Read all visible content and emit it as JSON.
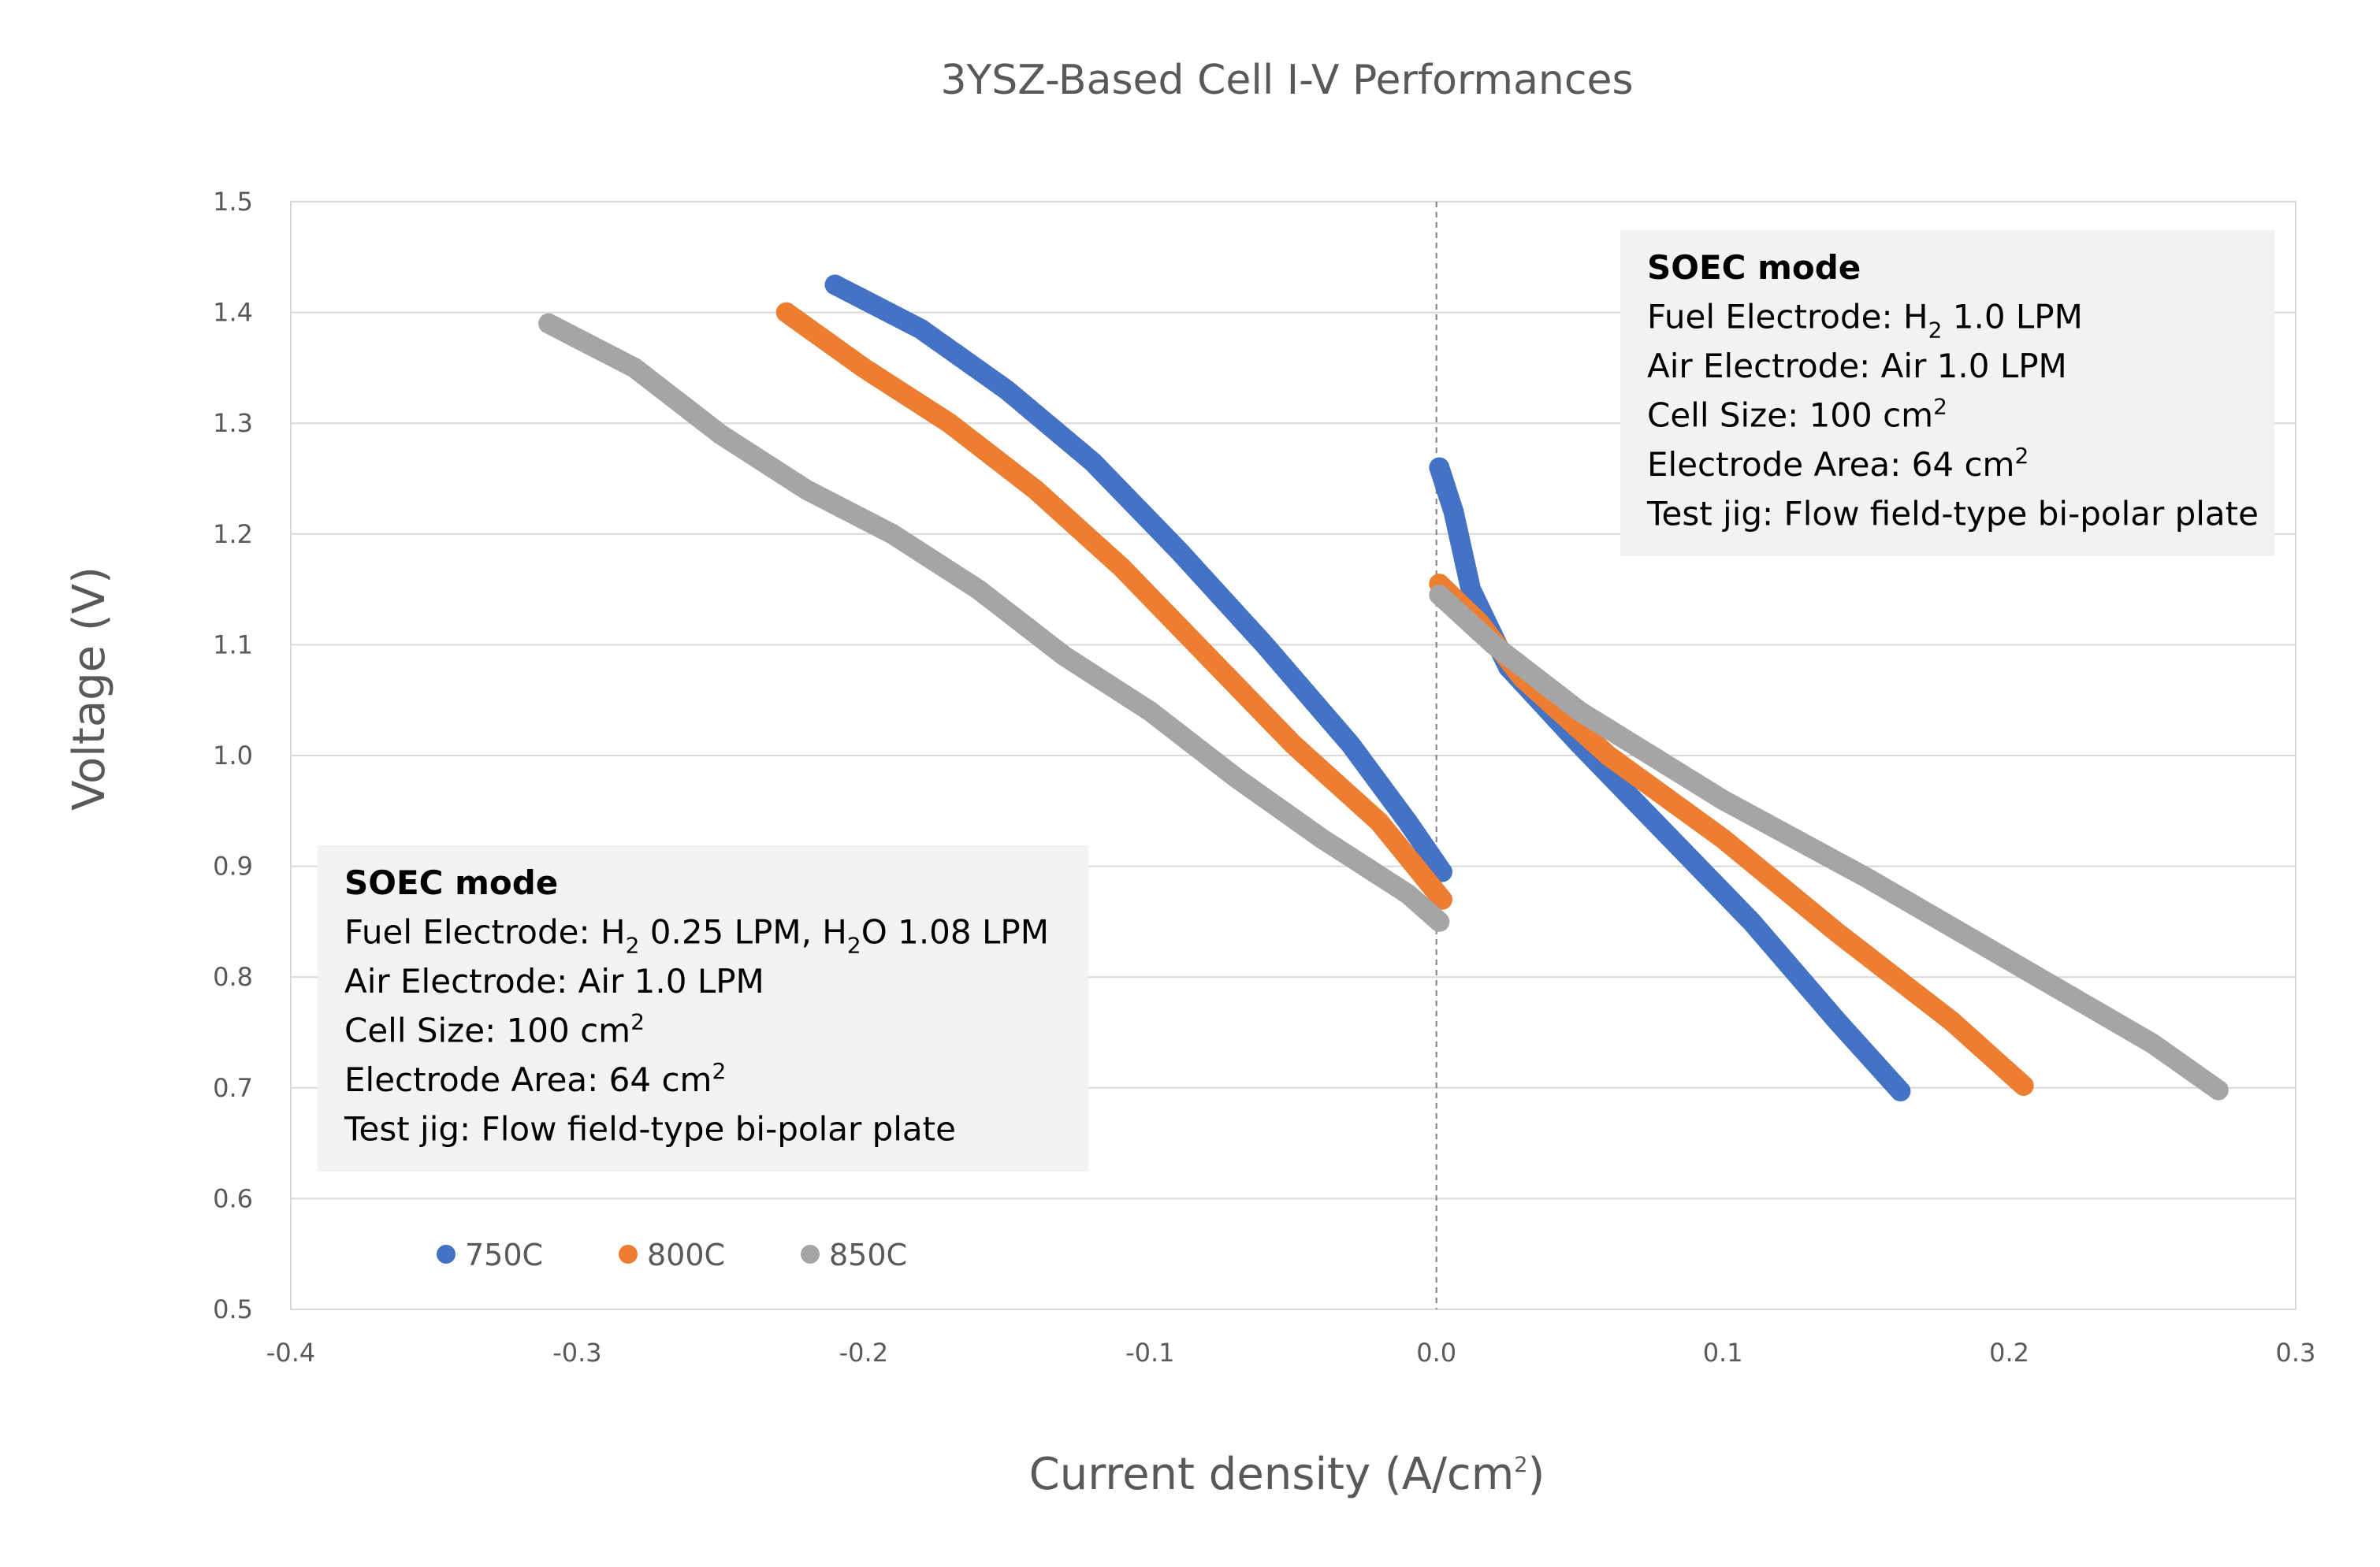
{
  "chart_data": {
    "type": "scatter",
    "title": "3YSZ-Based Cell I-V Performances",
    "xlabel": "Current density (A/cm",
    "xlabel_sup": "2",
    "xlabel_end": ")",
    "ylabel": "Voltage (V)",
    "xlim": [
      -0.4,
      0.3
    ],
    "ylim": [
      0.5,
      1.5
    ],
    "xticks": [
      -0.4,
      -0.3,
      -0.2,
      -0.1,
      0.0,
      0.1,
      0.2,
      0.3
    ],
    "yticks": [
      0.5,
      0.6,
      0.7,
      0.8,
      0.9,
      1.0,
      1.1,
      1.2,
      1.3,
      1.4,
      1.5
    ],
    "xtick_labels": [
      "-0.4",
      "-0.3",
      "-0.2",
      "-0.1",
      "0.0",
      "0.1",
      "0.2",
      "0.3"
    ],
    "ytick_labels": [
      "0.5",
      "0.6",
      "0.7",
      "0.8",
      "0.9",
      "1.0",
      "1.1",
      "1.2",
      "1.3",
      "1.4",
      "1.5"
    ],
    "grid": true,
    "zero_line": "dashed vertical at x = 0",
    "legend_position": "bottom-left",
    "series": [
      {
        "name": "750C",
        "color": "#4472C4",
        "points": [
          [
            -0.21,
            1.425
          ],
          [
            -0.18,
            1.385
          ],
          [
            -0.15,
            1.33
          ],
          [
            -0.12,
            1.265
          ],
          [
            -0.09,
            1.185
          ],
          [
            -0.06,
            1.1
          ],
          [
            -0.03,
            1.01
          ],
          [
            -0.01,
            0.94
          ],
          [
            0.002,
            0.895
          ],
          [
            0.001,
            1.26
          ],
          [
            0.006,
            1.22
          ],
          [
            0.012,
            1.15
          ],
          [
            0.025,
            1.08
          ],
          [
            0.05,
            1.01
          ],
          [
            0.08,
            0.93
          ],
          [
            0.11,
            0.85
          ],
          [
            0.14,
            0.76
          ],
          [
            0.162,
            0.697
          ]
        ]
      },
      {
        "name": "800C",
        "color": "#ED7D31",
        "points": [
          [
            -0.227,
            1.4
          ],
          [
            -0.2,
            1.35
          ],
          [
            -0.17,
            1.3
          ],
          [
            -0.14,
            1.24
          ],
          [
            -0.11,
            1.17
          ],
          [
            -0.08,
            1.09
          ],
          [
            -0.05,
            1.01
          ],
          [
            -0.02,
            0.94
          ],
          [
            0.002,
            0.87
          ],
          [
            0.001,
            1.155
          ],
          [
            0.015,
            1.12
          ],
          [
            0.03,
            1.07
          ],
          [
            0.06,
            1.0
          ],
          [
            0.1,
            0.925
          ],
          [
            0.14,
            0.84
          ],
          [
            0.18,
            0.76
          ],
          [
            0.205,
            0.702
          ]
        ]
      },
      {
        "name": "850C",
        "color": "#A5A5A5",
        "points": [
          [
            -0.31,
            1.39
          ],
          [
            -0.28,
            1.35
          ],
          [
            -0.25,
            1.29
          ],
          [
            -0.22,
            1.24
          ],
          [
            -0.19,
            1.2
          ],
          [
            -0.16,
            1.15
          ],
          [
            -0.13,
            1.09
          ],
          [
            -0.1,
            1.04
          ],
          [
            -0.07,
            0.98
          ],
          [
            -0.04,
            0.925
          ],
          [
            -0.01,
            0.875
          ],
          [
            0.001,
            0.85
          ],
          [
            0.001,
            1.145
          ],
          [
            0.02,
            1.1
          ],
          [
            0.05,
            1.04
          ],
          [
            0.1,
            0.96
          ],
          [
            0.15,
            0.89
          ],
          [
            0.2,
            0.815
          ],
          [
            0.25,
            0.74
          ],
          [
            0.273,
            0.698
          ]
        ]
      }
    ],
    "annotations": [
      {
        "name": "right",
        "heading": "SOEC mode",
        "lines": [
          [
            {
              "t": "Fuel Electrode: H"
            },
            {
              "t": "2",
              "s": "sub"
            },
            {
              "t": " 1.0 LPM"
            }
          ],
          [
            {
              "t": "Air Electrode: Air 1.0 LPM"
            }
          ],
          [
            {
              "t": "Cell Size: 100 cm"
            },
            {
              "t": "2",
              "s": "sup"
            }
          ],
          [
            {
              "t": "Electrode Area: 64 cm"
            },
            {
              "t": "2",
              "s": "sup"
            }
          ],
          [
            {
              "t": "Test jig: Flow field-type bi-polar plate"
            }
          ]
        ]
      },
      {
        "name": "left",
        "heading": "SOEC mode",
        "lines": [
          [
            {
              "t": "Fuel Electrode: H"
            },
            {
              "t": "2",
              "s": "sub"
            },
            {
              "t": " 0.25 LPM, H"
            },
            {
              "t": "2",
              "s": "sub"
            },
            {
              "t": "O 1.08 LPM"
            }
          ],
          [
            {
              "t": "Air Electrode: Air 1.0 LPM"
            }
          ],
          [
            {
              "t": "Cell Size: 100 cm"
            },
            {
              "t": "2",
              "s": "sup"
            }
          ],
          [
            {
              "t": "Electrode Area: 64 cm"
            },
            {
              "t": "2",
              "s": "sup"
            }
          ],
          [
            {
              "t": "Test jig: Flow field-type bi-polar plate"
            }
          ]
        ]
      }
    ]
  }
}
